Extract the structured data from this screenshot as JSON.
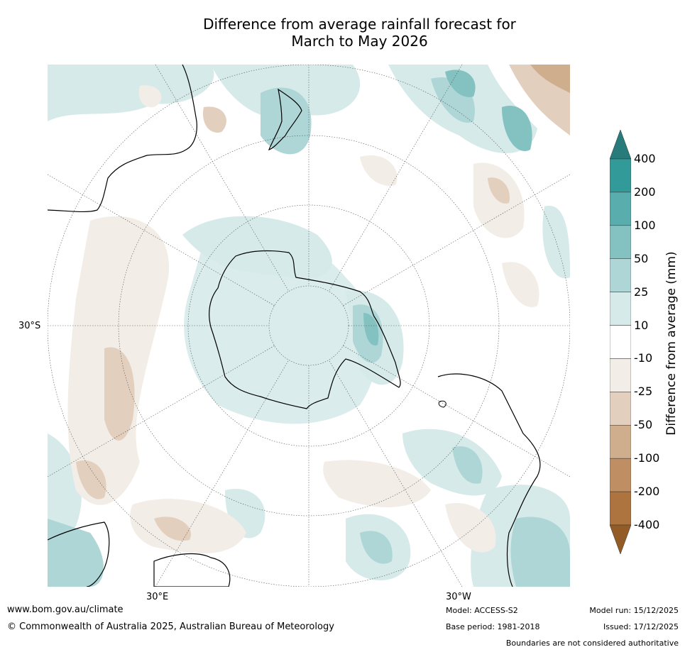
{
  "title_line1": "Difference from average rainfall forecast for",
  "title_line2": "March to May 2026",
  "lat_labels": {
    "left": "30°S"
  },
  "lon_labels": {
    "bottom_left": "30°E",
    "bottom_right": "30°W"
  },
  "colorbar": {
    "title": "Difference from average (mm)",
    "ticks": [
      "400",
      "200",
      "100",
      "50",
      "25",
      "10",
      "-10",
      "-25",
      "-50",
      "-100",
      "-200",
      "-400"
    ],
    "colors": {
      "over": "#287b7b",
      "above200": "#339a9a",
      "100to200": "#5aadad",
      "50to100": "#84c2c2",
      "25to50": "#aed6d6",
      "10to25": "#d6eaea",
      "neutral": "#ffffff",
      "m10tom25": "#f3ede7",
      "m25tom50": "#e3cfbe",
      "m50tom100": "#cfae8e",
      "m100tom200": "#bf8f63",
      "m200tom400": "#ad7440",
      "under": "#935c26"
    }
  },
  "footer": {
    "url": "www.bom.gov.au/climate",
    "copyright": "© Commonwealth of Australia 2025, Australian Bureau of Meteorology",
    "model": "Model: ACCESS-S2",
    "base_period": "Base period: 1981-2018",
    "model_run": "Model run: 15/12/2025",
    "issued": "Issued: 17/12/2025",
    "disclaimer": "Boundaries are not considered authoritative"
  }
}
